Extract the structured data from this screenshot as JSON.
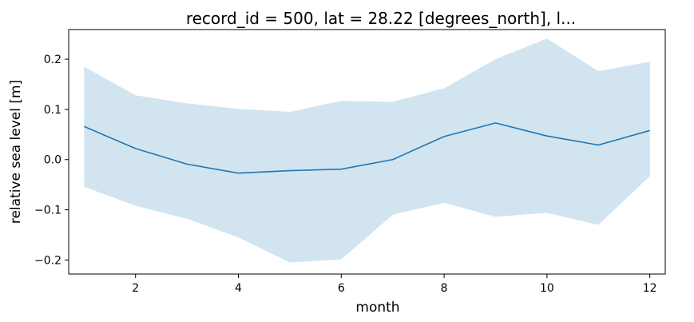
{
  "chart_data": {
    "type": "line",
    "title": "record_id = 500, lat = 28.22 [degrees_north], l...",
    "xlabel": "month",
    "ylabel": "relative sea level [m]",
    "xlim": [
      0.7,
      12.3
    ],
    "ylim": [
      -0.228,
      0.259
    ],
    "x_ticks": [
      2,
      4,
      6,
      8,
      10,
      12
    ],
    "x_tick_labels": [
      "2",
      "4",
      "6",
      "8",
      "10",
      "12"
    ],
    "y_ticks": [
      -0.2,
      -0.1,
      0.0,
      0.1,
      0.2
    ],
    "y_tick_labels": [
      "−0.2",
      "−0.1",
      "0.0",
      "0.1",
      "0.2"
    ],
    "grid": false,
    "x": [
      1,
      2,
      3,
      4,
      5,
      6,
      7,
      8,
      9,
      10,
      11,
      12
    ],
    "series": [
      {
        "values": [
          0.066,
          0.022,
          -0.009,
          -0.027,
          -0.022,
          -0.019,
          0.0,
          0.046,
          0.073,
          0.047,
          0.029,
          0.058
        ],
        "color": "#1f77b4"
      }
    ],
    "band": {
      "upper": [
        0.185,
        0.128,
        0.112,
        0.101,
        0.095,
        0.117,
        0.115,
        0.142,
        0.2,
        0.241,
        0.176,
        0.195
      ],
      "lower": [
        -0.054,
        -0.092,
        -0.118,
        -0.155,
        -0.205,
        -0.199,
        -0.11,
        -0.086,
        -0.114,
        -0.106,
        -0.13,
        -0.033
      ],
      "color": "#1f77b4",
      "opacity": 0.2
    }
  }
}
